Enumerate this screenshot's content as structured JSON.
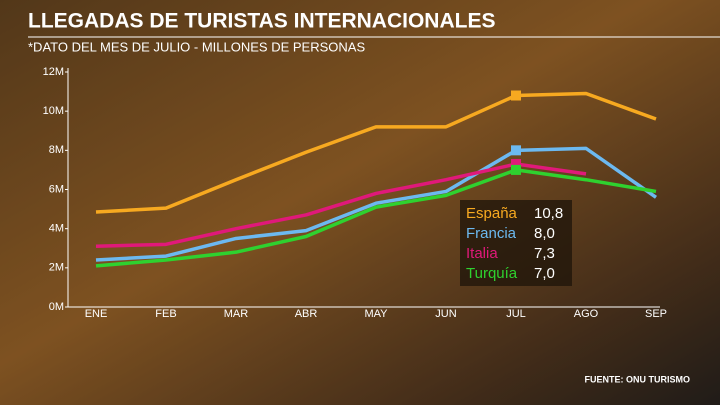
{
  "chart_data": {
    "type": "line",
    "title": "LLEGADAS DE TURISTAS INTERNACIONALES",
    "subtitle": "*DATO DEL MES DE JULIO - MILLONES DE PERSONAS",
    "source": "FUENTE: ONU TURISMO",
    "categories": [
      "ENE",
      "FEB",
      "MAR",
      "ABR",
      "MAY",
      "JUN",
      "JUL",
      "AGO",
      "SEP"
    ],
    "ylim": [
      0,
      12
    ],
    "yticks": [
      {
        "value": 0,
        "label": "0M"
      },
      {
        "value": 2,
        "label": "2M"
      },
      {
        "value": 4,
        "label": "4M"
      },
      {
        "value": 6,
        "label": "6M"
      },
      {
        "value": 8,
        "label": "8M"
      },
      {
        "value": 10,
        "label": "10M"
      },
      {
        "value": 12,
        "label": "12M"
      }
    ],
    "series": [
      {
        "name": "España",
        "color": "#f7a920",
        "values": [
          4.85,
          5.05,
          6.5,
          7.9,
          9.2,
          9.2,
          10.8,
          10.9,
          9.6
        ],
        "value_labels": [
          null,
          null,
          null,
          null,
          null,
          null,
          "10,8",
          null,
          null
        ]
      },
      {
        "name": "Francia",
        "color": "#6cb9f0",
        "values": [
          2.4,
          2.6,
          3.5,
          3.9,
          5.3,
          5.9,
          8.0,
          8.1,
          5.6
        ],
        "value_labels": [
          null,
          null,
          null,
          null,
          null,
          null,
          "8,0",
          null,
          null
        ]
      },
      {
        "name": "Italia",
        "color": "#e0197a",
        "values": [
          3.1,
          3.2,
          4.0,
          4.7,
          5.8,
          6.5,
          7.3,
          6.8,
          null
        ],
        "value_labels": [
          null,
          null,
          null,
          null,
          null,
          null,
          "7,3",
          null,
          null
        ]
      },
      {
        "name": "Turquía",
        "color": "#2fd12f",
        "values": [
          2.1,
          2.4,
          2.8,
          3.6,
          5.1,
          5.7,
          7.0,
          6.5,
          5.9
        ],
        "value_labels": [
          null,
          null,
          null,
          null,
          null,
          null,
          "7,0",
          null,
          null
        ]
      }
    ]
  }
}
